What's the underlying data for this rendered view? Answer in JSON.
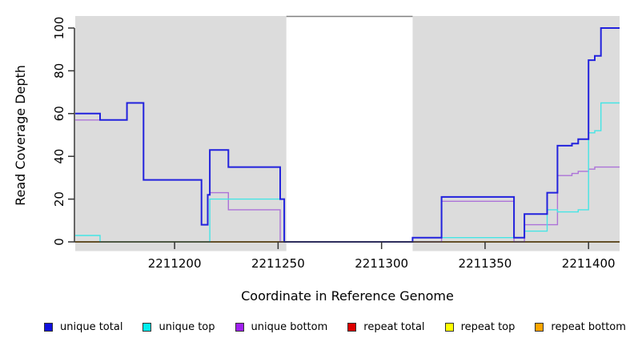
{
  "chart_data": {
    "type": "line",
    "step": true,
    "title": "",
    "xlabel": "Coordinate in Reference Genome",
    "ylabel": "Read Coverage Depth",
    "xlim": [
      2211152,
      2211415
    ],
    "ylim": [
      0,
      100
    ],
    "grid": "off",
    "legend_position": "bottom",
    "x_ticks": [
      {
        "value": 2211200,
        "label": "2211200"
      },
      {
        "value": 2211250,
        "label": "2211250"
      },
      {
        "value": 2211300,
        "label": "2211300"
      },
      {
        "value": 2211350,
        "label": "2211350"
      },
      {
        "value": 2211400,
        "label": "2211400"
      }
    ],
    "y_ticks": [
      {
        "value": 0,
        "label": "0"
      },
      {
        "value": 20,
        "label": "20"
      },
      {
        "value": 40,
        "label": "40"
      },
      {
        "value": 60,
        "label": "60"
      },
      {
        "value": 80,
        "label": "80"
      },
      {
        "value": 100,
        "label": "100"
      }
    ],
    "shaded_regions": [
      [
        2211152,
        2211254
      ],
      [
        2211315,
        2211415
      ]
    ],
    "gap_region": [
      2211254,
      2211315
    ],
    "shade_color": "#dcdcdc",
    "gap_border_color": "#808080",
    "axis_color": "#333333",
    "series": [
      {
        "label": "unique total",
        "color": "#2222DD",
        "swatch": "#1111DD",
        "width": 2,
        "points": [
          [
            2211152,
            60
          ],
          [
            2211164,
            57
          ],
          [
            2211177,
            65
          ],
          [
            2211185,
            29
          ],
          [
            2211213,
            8
          ],
          [
            2211216,
            22
          ],
          [
            2211217,
            43
          ],
          [
            2211226,
            35
          ],
          [
            2211251,
            20
          ],
          [
            2211253,
            0
          ],
          [
            2211315,
            2
          ],
          [
            2211329,
            21
          ],
          [
            2211364,
            2
          ],
          [
            2211369,
            13
          ],
          [
            2211380,
            23
          ],
          [
            2211385,
            45
          ],
          [
            2211392,
            46
          ],
          [
            2211395,
            48
          ],
          [
            2211400,
            85
          ],
          [
            2211403,
            87
          ],
          [
            2211406,
            100
          ]
        ]
      },
      {
        "label": "unique top",
        "color": "#45E5E5",
        "swatch": "#00EEEE",
        "width": 1.4,
        "points": [
          [
            2211152,
            3
          ],
          [
            2211164,
            0
          ],
          [
            2211217,
            20
          ],
          [
            2211253,
            0
          ],
          [
            2211315,
            2
          ],
          [
            2211369,
            5
          ],
          [
            2211380,
            15
          ],
          [
            2211385,
            14
          ],
          [
            2211395,
            15
          ],
          [
            2211400,
            51
          ],
          [
            2211403,
            52
          ],
          [
            2211406,
            65
          ]
        ]
      },
      {
        "label": "unique bottom",
        "color": "#AC72D8",
        "swatch": "#A020F0",
        "width": 1.4,
        "points": [
          [
            2211152,
            57
          ],
          [
            2211177,
            65
          ],
          [
            2211185,
            29
          ],
          [
            2211213,
            8
          ],
          [
            2211216,
            22
          ],
          [
            2211217,
            23
          ],
          [
            2211226,
            15
          ],
          [
            2211251,
            0
          ],
          [
            2211329,
            19
          ],
          [
            2211364,
            0
          ],
          [
            2211369,
            8
          ],
          [
            2211385,
            31
          ],
          [
            2211392,
            32
          ],
          [
            2211395,
            33
          ],
          [
            2211400,
            34
          ],
          [
            2211403,
            35
          ]
        ]
      },
      {
        "label": "repeat total",
        "color": "#DD0000",
        "swatch": "#DD0000",
        "width": 1.4,
        "points": [
          [
            2211152,
            0
          ]
        ]
      },
      {
        "label": "repeat top",
        "color": "#FFFF00",
        "swatch": "#FFFF00",
        "width": 1.4,
        "points": [
          [
            2211152,
            0
          ]
        ]
      },
      {
        "label": "repeat bottom",
        "color": "#FFA500",
        "swatch": "#FFA500",
        "width": 1.8,
        "points": [
          [
            2211152,
            0
          ]
        ]
      }
    ]
  }
}
